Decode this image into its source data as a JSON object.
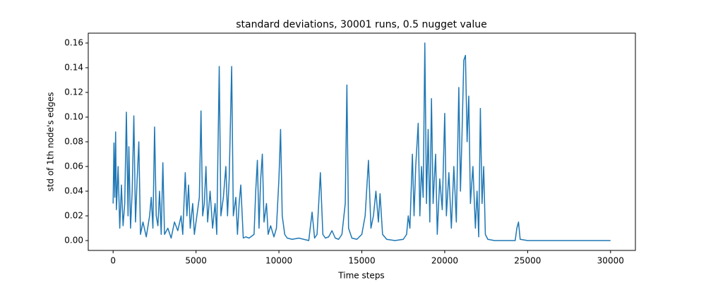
{
  "chart_data": {
    "type": "line",
    "title": "standard deviations, 30001 runs, 0.5 nugget value",
    "x_label": "Time steps",
    "y_label": "std of 1th node's edges",
    "xlim": [
      -1500,
      31500
    ],
    "ylim": [
      -0.008,
      0.168
    ],
    "xticks": [
      0,
      5000,
      10000,
      15000,
      20000,
      25000,
      30000
    ],
    "yticks": [
      {
        "value": 0,
        "label": "0.00"
      },
      0.02,
      0.04,
      0.06,
      0.08,
      {
        "value": 0.1,
        "label": "0.10"
      },
      0.12,
      0.14,
      0.16
    ],
    "series": [
      {
        "color": "#1f77b4",
        "x": [
          0,
          50,
          100,
          150,
          200,
          300,
          400,
          500,
          600,
          700,
          800,
          900,
          950,
          1050,
          1150,
          1250,
          1350,
          1450,
          1550,
          1650,
          1800,
          2000,
          2200,
          2300,
          2400,
          2500,
          2600,
          2700,
          2800,
          2900,
          3000,
          3100,
          3300,
          3500,
          3700,
          3900,
          4100,
          4200,
          4350,
          4450,
          4550,
          4650,
          4800,
          4900,
          5050,
          5200,
          5300,
          5400,
          5500,
          5600,
          5700,
          5850,
          6000,
          6150,
          6250,
          6400,
          6500,
          6650,
          6800,
          6900,
          7000,
          7150,
          7250,
          7400,
          7500,
          7600,
          7700,
          7850,
          8000,
          8200,
          8500,
          8600,
          8700,
          8800,
          8900,
          9000,
          9100,
          9250,
          9350,
          9500,
          9700,
          9850,
          10000,
          10100,
          10200,
          10350,
          10500,
          10800,
          11200,
          11500,
          11800,
          12000,
          12150,
          12300,
          12500,
          12650,
          12800,
          13000,
          13200,
          13400,
          13600,
          13800,
          14000,
          14100,
          14200,
          14400,
          14700,
          15000,
          15200,
          15400,
          15550,
          15700,
          15850,
          16000,
          16100,
          16250,
          16500,
          17000,
          17500,
          17700,
          17800,
          17900,
          18050,
          18150,
          18250,
          18400,
          18500,
          18600,
          18700,
          18800,
          18900,
          19000,
          19100,
          19200,
          19300,
          19450,
          19550,
          19700,
          19850,
          20000,
          20100,
          20250,
          20400,
          20550,
          20700,
          20850,
          20950,
          21050,
          21150,
          21250,
          21350,
          21450,
          21550,
          21700,
          21850,
          21950,
          22050,
          22150,
          22250,
          22350,
          22450,
          22600,
          23000,
          24000,
          24250,
          24350,
          24450,
          24550,
          25000,
          30000
        ],
        "values": [
          0.03,
          0.079,
          0.035,
          0.088,
          0.025,
          0.06,
          0.01,
          0.045,
          0.012,
          0.03,
          0.104,
          0.02,
          0.076,
          0.01,
          0.04,
          0.101,
          0.015,
          0.05,
          0.08,
          0.005,
          0.015,
          0.003,
          0.02,
          0.035,
          0.01,
          0.092,
          0.02,
          0.012,
          0.04,
          0.005,
          0.063,
          0.005,
          0.01,
          0.002,
          0.015,
          0.008,
          0.02,
          0.005,
          0.055,
          0.02,
          0.045,
          0.01,
          0.03,
          0.005,
          0.02,
          0.035,
          0.105,
          0.02,
          0.03,
          0.06,
          0.015,
          0.04,
          0.01,
          0.03,
          0.005,
          0.141,
          0.02,
          0.035,
          0.06,
          0.02,
          0.05,
          0.141,
          0.02,
          0.035,
          0.005,
          0.03,
          0.045,
          0.002,
          0.003,
          0.002,
          0.005,
          0.04,
          0.065,
          0.01,
          0.05,
          0.07,
          0.015,
          0.03,
          0.005,
          0.012,
          0.003,
          0.01,
          0.05,
          0.09,
          0.02,
          0.005,
          0.002,
          0.001,
          0.002,
          0.001,
          0,
          0.023,
          0.002,
          0.005,
          0.055,
          0.005,
          0.002,
          0.003,
          0.008,
          0.002,
          0.001,
          0.005,
          0.03,
          0.126,
          0.01,
          0.002,
          0.001,
          0.005,
          0.02,
          0.065,
          0.01,
          0.02,
          0.04,
          0.015,
          0.038,
          0.005,
          0.001,
          0,
          0.001,
          0.005,
          0.02,
          0.01,
          0.07,
          0.02,
          0.06,
          0.095,
          0.02,
          0.06,
          0.035,
          0.16,
          0.03,
          0.09,
          0.015,
          0.115,
          0.03,
          0.07,
          0.005,
          0.05,
          0.025,
          0.103,
          0.02,
          0.055,
          0.01,
          0.06,
          0.015,
          0.124,
          0.04,
          0.09,
          0.146,
          0.15,
          0.08,
          0.117,
          0.03,
          0.06,
          0.01,
          0.04,
          0.003,
          0.107,
          0.03,
          0.06,
          0.005,
          0.001,
          0,
          0,
          0,
          0.01,
          0.015,
          0.001,
          0,
          0
        ]
      }
    ]
  }
}
